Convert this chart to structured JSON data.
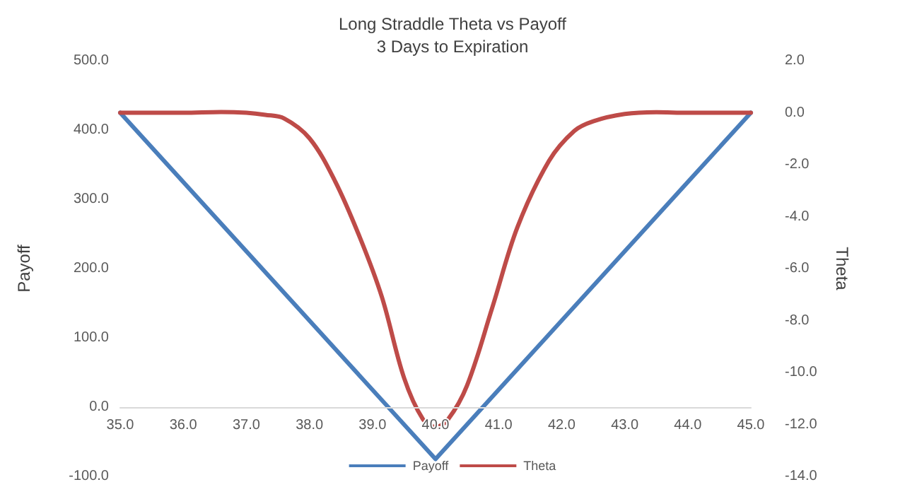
{
  "chart_data": {
    "type": "line",
    "title": "Long Straddle Theta vs Payoff",
    "subtitle": "3 Days to Expiration",
    "ylabel": "Payoff",
    "y2label": "Theta",
    "xlim": [
      35,
      45
    ],
    "xticks": [
      {
        "value": 35,
        "label": "35.0"
      },
      {
        "value": 36,
        "label": "36.0"
      },
      {
        "value": 37,
        "label": "37.0"
      },
      {
        "value": 38,
        "label": "38.0"
      },
      {
        "value": 39,
        "label": "39.0"
      },
      {
        "value": 40,
        "label": "40.0"
      },
      {
        "value": 41,
        "label": "41.0"
      },
      {
        "value": 42,
        "label": "42.0"
      },
      {
        "value": 43,
        "label": "43.0"
      },
      {
        "value": 44,
        "label": "44.0"
      },
      {
        "value": 45,
        "label": "45.0"
      }
    ],
    "ylim": [
      -100,
      500
    ],
    "yticks": [
      {
        "value": -100,
        "label": "-100.0"
      },
      {
        "value": 0,
        "label": "0.0"
      },
      {
        "value": 100,
        "label": "100.0"
      },
      {
        "value": 200,
        "label": "200.0"
      },
      {
        "value": 300,
        "label": "300.0"
      },
      {
        "value": 400,
        "label": "400.0"
      },
      {
        "value": 500,
        "label": "500.0"
      }
    ],
    "y2lim": [
      -14,
      2
    ],
    "y2ticks": [
      {
        "value": -14,
        "label": "-14.0"
      },
      {
        "value": -12,
        "label": "-12.0"
      },
      {
        "value": -10,
        "label": "-10.0"
      },
      {
        "value": -8,
        "label": "-8.0"
      },
      {
        "value": -6,
        "label": "-6.0"
      },
      {
        "value": -4,
        "label": "-4.0"
      },
      {
        "value": -2,
        "label": "-2.0"
      },
      {
        "value": 0,
        "label": "0.0"
      },
      {
        "value": 2,
        "label": "2.0"
      }
    ],
    "grid": false,
    "legend": "bottom",
    "marker": "none",
    "line_style": "solid",
    "series": [
      {
        "name": "Payoff",
        "color": "#4a7ebb",
        "x": [
          35,
          40,
          45
        ],
        "values": [
          425,
          -75,
          425
        ]
      },
      {
        "name": "Theta",
        "color": "#be4b48",
        "axis": "y2",
        "x": [
          35,
          36,
          36.6,
          37,
          37.3,
          37.6,
          38,
          38.4,
          38.8,
          39.15,
          39.5,
          39.8,
          40,
          40.2,
          40.5,
          40.9,
          41.3,
          41.8,
          42.2,
          42.5,
          43,
          43.5,
          44,
          45
        ],
        "values": [
          0,
          0,
          0.03,
          0,
          -0.08,
          -0.22,
          -0.98,
          -2.6,
          -4.8,
          -7.1,
          -10.2,
          -11.8,
          -12.1,
          -11.8,
          -10.5,
          -7.5,
          -4.4,
          -1.85,
          -0.7,
          -0.33,
          -0.05,
          0.02,
          0,
          0
        ]
      }
    ]
  }
}
